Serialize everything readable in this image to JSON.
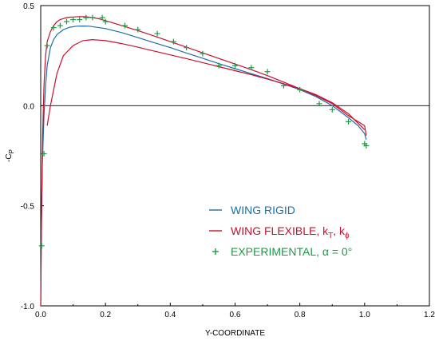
{
  "chart_data": {
    "type": "line",
    "xlabel": "Y-COORDINATE",
    "ylabel_main": "-C",
    "ylabel_sub": "P",
    "xlim": [
      0.0,
      1.2
    ],
    "ylim": [
      -1.0,
      0.5
    ],
    "xticks": [
      0.0,
      0.2,
      0.4,
      0.6,
      0.8,
      1.0,
      1.2
    ],
    "xtick_labels": [
      "0.0",
      "0.2",
      "0.4",
      "0.6",
      "0.8",
      "1.0",
      "1.2"
    ],
    "yticks": [
      -1.0,
      -0.5,
      0.0,
      0.5
    ],
    "ytick_labels": [
      "-1.0",
      "-0.5",
      "0.0",
      "0.5"
    ],
    "zero_line": true,
    "grid": false,
    "legend_position": "lower-right",
    "series": [
      {
        "name": "WING RIGID",
        "kind": "line",
        "color": "#1a6fa6",
        "x": [
          0.0,
          0.002,
          0.005,
          0.01,
          0.015,
          0.02,
          0.03,
          0.04,
          0.05,
          0.07,
          0.09,
          0.11,
          0.13,
          0.15,
          0.2,
          0.25,
          0.3,
          0.35,
          0.4,
          0.45,
          0.5,
          0.55,
          0.6,
          0.65,
          0.7,
          0.75,
          0.8,
          0.85,
          0.9,
          0.95,
          0.98,
          1.0,
          1.005
        ],
        "y": [
          -1.0,
          -0.6,
          -0.3,
          -0.05,
          0.1,
          0.2,
          0.29,
          0.33,
          0.355,
          0.38,
          0.392,
          0.397,
          0.398,
          0.397,
          0.385,
          0.365,
          0.34,
          0.315,
          0.29,
          0.263,
          0.237,
          0.21,
          0.185,
          0.16,
          0.135,
          0.108,
          0.08,
          0.045,
          0.0,
          -0.06,
          -0.1,
          -0.14,
          -0.17
        ]
      },
      {
        "name": "WING FLEXIBLE, k",
        "name_sub1": "T",
        "name_sep": ", k",
        "name_sub2": "ϕ",
        "kind": "line",
        "color": "#c8102e",
        "x": [
          0.0,
          0.003,
          0.006,
          0.01,
          0.015,
          0.02,
          0.03,
          0.04,
          0.05,
          0.06,
          0.07,
          0.08,
          0.09,
          0.1,
          0.12,
          0.14,
          0.16,
          0.18,
          0.2,
          0.25,
          0.3,
          0.35,
          0.4,
          0.45,
          0.5,
          0.55,
          0.6,
          0.65,
          0.7,
          0.75,
          0.8,
          0.85,
          0.9,
          0.95,
          1.0,
          1.005
        ],
        "y": [
          -1.0,
          -0.5,
          -0.15,
          0.1,
          0.25,
          0.32,
          0.37,
          0.4,
          0.42,
          0.43,
          0.435,
          0.44,
          0.442,
          0.443,
          0.445,
          0.444,
          0.44,
          0.434,
          0.425,
          0.4,
          0.375,
          0.348,
          0.32,
          0.292,
          0.264,
          0.236,
          0.208,
          0.18,
          0.15,
          0.118,
          0.085,
          0.05,
          0.01,
          -0.05,
          -0.1,
          -0.15
        ],
        "lower_branch_x": [
          0.02,
          0.03,
          0.05,
          0.07,
          0.1,
          0.13,
          0.16,
          0.2,
          0.25,
          0.3,
          0.35,
          0.4,
          0.45,
          0.5,
          0.55,
          0.6,
          0.65,
          0.7,
          0.75,
          0.8,
          0.85,
          0.9,
          0.95,
          1.0
        ],
        "lower_branch_y": [
          -0.1,
          0.0,
          0.16,
          0.25,
          0.3,
          0.325,
          0.33,
          0.325,
          0.31,
          0.292,
          0.273,
          0.254,
          0.235,
          0.215,
          0.195,
          0.175,
          0.155,
          0.133,
          0.11,
          0.085,
          0.055,
          0.015,
          -0.04,
          -0.12
        ]
      },
      {
        "name": "EXPERIMENTAL, α = 0°",
        "kind": "scatter",
        "marker": "+",
        "color": "#1e9a45",
        "x": [
          0.003,
          0.01,
          0.02,
          0.04,
          0.06,
          0.08,
          0.1,
          0.12,
          0.14,
          0.16,
          0.19,
          0.2,
          0.26,
          0.3,
          0.36,
          0.41,
          0.45,
          0.5,
          0.55,
          0.6,
          0.65,
          0.7,
          0.75,
          0.8,
          0.86,
          0.9,
          0.95,
          1.0,
          1.005
        ],
        "y": [
          -0.7,
          -0.24,
          0.3,
          0.39,
          0.4,
          0.42,
          0.43,
          0.43,
          0.44,
          0.44,
          0.44,
          0.42,
          0.4,
          0.38,
          0.36,
          0.32,
          0.29,
          0.26,
          0.2,
          0.2,
          0.19,
          0.17,
          0.1,
          0.08,
          0.01,
          -0.02,
          -0.08,
          -0.19,
          -0.2
        ]
      }
    ]
  }
}
